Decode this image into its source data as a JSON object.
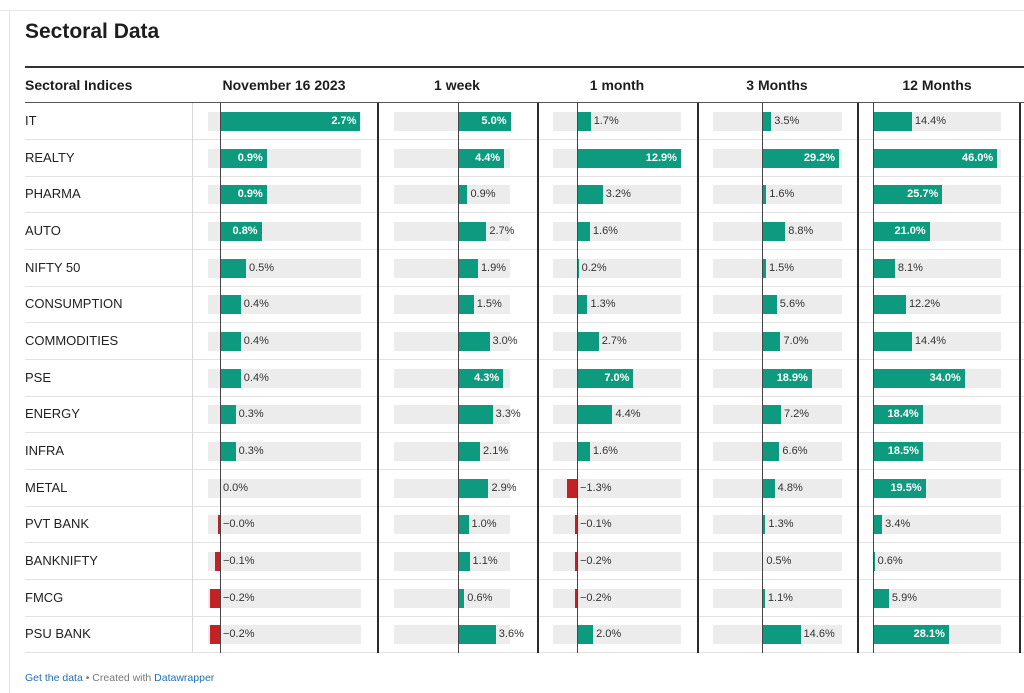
{
  "title": "Sectoral Data",
  "colors": {
    "positive": "#0d9a7e",
    "negative": "#c42127",
    "track": "#ececec"
  },
  "footer": {
    "link1": "Get the data",
    "separator": " • Created with ",
    "link2": "Datawrapper"
  },
  "chart_data": {
    "type": "bar",
    "first_column_label": "Sectoral Indices",
    "columns": [
      "November 16 2023",
      "1 week",
      "1 month",
      "3 Months",
      "12 Months"
    ],
    "categories": [
      "IT",
      "REALTY",
      "PHARMA",
      "AUTO",
      "NIFTY 50",
      "CONSUMPTION",
      "COMMODITIES",
      "PSE",
      "ENERGY",
      "INFRA",
      "METAL",
      "PVT BANK",
      "BANKNIFTY",
      "FMCG",
      "PSU BANK"
    ],
    "series": [
      {
        "name": "November 16 2023",
        "values": [
          2.7,
          0.9,
          0.9,
          0.8,
          0.5,
          0.4,
          0.4,
          0.4,
          0.3,
          0.3,
          0.0,
          -0.0,
          -0.1,
          -0.2,
          -0.2
        ],
        "labels": [
          "2.7%",
          "0.9%",
          "0.9%",
          "0.8%",
          "0.5%",
          "0.4%",
          "0.4%",
          "0.4%",
          "0.3%",
          "0.3%",
          "0.0%",
          "−0.0%",
          "−0.1%",
          "−0.2%",
          "−0.2%"
        ]
      },
      {
        "name": "1 week",
        "values": [
          5.0,
          4.4,
          0.9,
          2.7,
          1.9,
          1.5,
          3.0,
          4.3,
          3.3,
          2.1,
          2.9,
          1.0,
          1.1,
          0.6,
          3.6
        ],
        "labels": [
          "5.0%",
          "4.4%",
          "0.9%",
          "2.7%",
          "1.9%",
          "1.5%",
          "3.0%",
          "4.3%",
          "3.3%",
          "2.1%",
          "2.9%",
          "1.0%",
          "1.1%",
          "0.6%",
          "3.6%"
        ]
      },
      {
        "name": "1 month",
        "values": [
          1.7,
          12.9,
          3.2,
          1.6,
          0.2,
          1.3,
          2.7,
          7.0,
          4.4,
          1.6,
          -1.3,
          -0.1,
          -0.2,
          -0.2,
          2.0
        ],
        "labels": [
          "1.7%",
          "12.9%",
          "3.2%",
          "1.6%",
          "0.2%",
          "1.3%",
          "2.7%",
          "7.0%",
          "4.4%",
          "1.6%",
          "−1.3%",
          "−0.1%",
          "−0.2%",
          "−0.2%",
          "2.0%"
        ]
      },
      {
        "name": "3 Months",
        "values": [
          3.5,
          29.2,
          1.6,
          8.8,
          1.5,
          5.6,
          7.0,
          18.9,
          7.2,
          6.6,
          4.8,
          1.3,
          0.5,
          1.1,
          14.6
        ],
        "labels": [
          "3.5%",
          "29.2%",
          "1.6%",
          "8.8%",
          "1.5%",
          "5.6%",
          "7.0%",
          "18.9%",
          "7.2%",
          "6.6%",
          "4.8%",
          "1.3%",
          "0.5%",
          "1.1%",
          "14.6%"
        ]
      },
      {
        "name": "12 Months",
        "values": [
          14.4,
          46.0,
          25.7,
          21.0,
          8.1,
          12.2,
          14.4,
          34.0,
          18.4,
          18.5,
          19.5,
          3.4,
          0.6,
          5.9,
          28.1
        ],
        "labels": [
          "14.4%",
          "46.0%",
          "25.7%",
          "21.0%",
          "8.1%",
          "12.2%",
          "14.4%",
          "34.0%",
          "18.4%",
          "18.5%",
          "19.5%",
          "3.4%",
          "0.6%",
          "5.9%",
          "28.1%"
        ]
      }
    ],
    "xlabel": "",
    "ylabel": ""
  }
}
